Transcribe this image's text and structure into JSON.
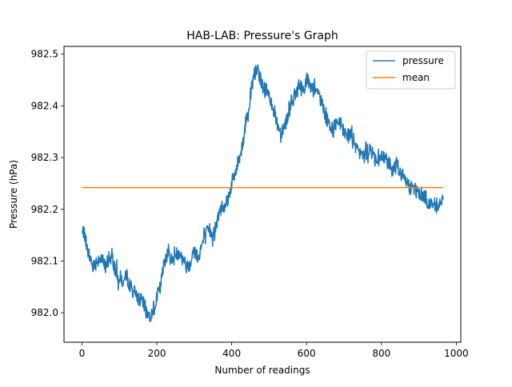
{
  "chart_data": {
    "type": "line",
    "title": "HAB-LAB: Pressure's Graph",
    "xlabel": "Number of readings",
    "ylabel": "Pressure (hPa)",
    "xlim": [
      -48,
      1012
    ],
    "ylim": [
      981.943,
      982.515
    ],
    "x_ticks": [
      0,
      200,
      400,
      600,
      800,
      1000
    ],
    "x_tick_labels": [
      "0",
      "200",
      "400",
      "600",
      "800",
      "1000"
    ],
    "y_ticks": [
      982.0,
      982.1,
      982.2,
      982.3,
      982.4,
      982.5
    ],
    "y_tick_labels": [
      "982.0",
      "982.1",
      "982.2",
      "982.3",
      "982.4",
      "982.5"
    ],
    "grid": false,
    "legend_position": "top-right",
    "series": [
      {
        "name": "pressure",
        "color": "#1f77b4",
        "noise_amplitude": 0.015,
        "x": [
          0,
          5,
          10,
          20,
          30,
          40,
          50,
          60,
          70,
          80,
          90,
          100,
          110,
          120,
          130,
          140,
          150,
          160,
          170,
          180,
          190,
          200,
          210,
          220,
          230,
          240,
          250,
          260,
          270,
          280,
          290,
          300,
          310,
          320,
          330,
          340,
          350,
          360,
          370,
          380,
          390,
          400,
          410,
          420,
          430,
          440,
          450,
          460,
          470,
          480,
          490,
          500,
          510,
          520,
          530,
          540,
          550,
          560,
          570,
          580,
          590,
          600,
          610,
          620,
          630,
          640,
          650,
          660,
          670,
          680,
          690,
          700,
          710,
          720,
          730,
          740,
          750,
          760,
          770,
          780,
          790,
          800,
          810,
          820,
          830,
          840,
          850,
          860,
          870,
          880,
          890,
          900,
          910,
          920,
          930,
          940,
          950,
          960,
          965
        ],
        "y": [
          982.15,
          982.16,
          982.13,
          982.11,
          982.09,
          982.1,
          982.11,
          982.09,
          982.1,
          982.11,
          982.08,
          982.07,
          982.06,
          982.07,
          982.05,
          982.04,
          982.03,
          982.02,
          982.01,
          981.99,
          982.01,
          982.03,
          982.05,
          982.1,
          982.12,
          982.1,
          982.11,
          982.12,
          982.1,
          982.09,
          982.1,
          982.12,
          982.11,
          982.13,
          982.15,
          982.16,
          982.15,
          982.17,
          982.2,
          982.21,
          982.22,
          982.25,
          982.27,
          982.3,
          982.33,
          982.38,
          982.42,
          982.46,
          982.47,
          982.44,
          982.43,
          982.42,
          982.4,
          982.37,
          982.35,
          982.36,
          982.38,
          982.41,
          982.42,
          982.44,
          982.43,
          982.45,
          982.44,
          982.43,
          982.42,
          982.41,
          982.38,
          982.37,
          982.35,
          982.37,
          982.36,
          982.35,
          982.34,
          982.35,
          982.32,
          982.31,
          982.3,
          982.31,
          982.32,
          982.3,
          982.29,
          982.3,
          982.3,
          982.29,
          982.28,
          982.29,
          982.27,
          982.26,
          982.25,
          982.24,
          982.24,
          982.23,
          982.23,
          982.22,
          982.21,
          982.21,
          982.21,
          982.22,
          982.22
        ]
      },
      {
        "name": "mean",
        "color": "#ff7f0e",
        "x": [
          0,
          965
        ],
        "y": [
          982.242,
          982.242
        ]
      }
    ]
  }
}
